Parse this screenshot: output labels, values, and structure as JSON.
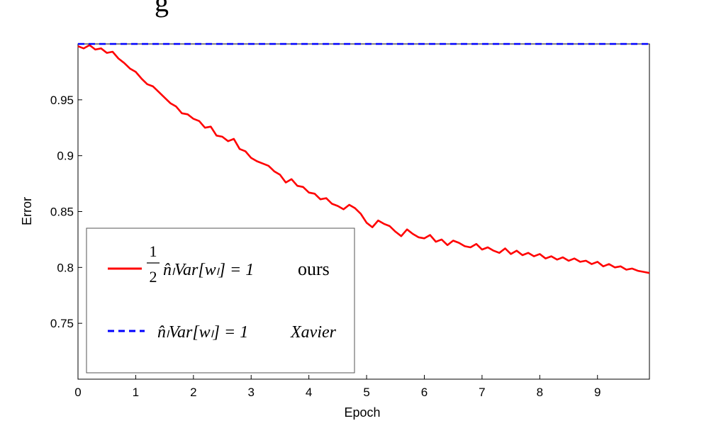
{
  "header": {
    "partial_text": "g"
  },
  "chart_data": {
    "type": "line",
    "title": "",
    "xlabel": "Epoch",
    "ylabel": "Error",
    "xlim": [
      0,
      9.9
    ],
    "ylim": [
      0.7,
      1.0
    ],
    "x_ticks": [
      "0",
      "1",
      "2",
      "3",
      "4",
      "5",
      "6",
      "7",
      "8",
      "9"
    ],
    "y_ticks": [
      "0.75",
      "0.8",
      "0.85",
      "0.9",
      "0.95"
    ],
    "grid": false,
    "legend_position": "bottom-left",
    "series": [
      {
        "name": "1/2 n̂_l Var[w_l] = 1 ours",
        "color": "#ff0000",
        "style": "solid",
        "legend": {
          "numerator": "1",
          "denominator": "2",
          "expr": "n̂ₗVar[wₗ] = 1",
          "tag": "ours"
        },
        "points": [
          [
            0.0,
            0.998
          ],
          [
            0.1,
            0.996
          ],
          [
            0.2,
            0.999
          ],
          [
            0.3,
            0.995
          ],
          [
            0.4,
            0.996
          ],
          [
            0.5,
            0.992
          ],
          [
            0.6,
            0.993
          ],
          [
            0.7,
            0.987
          ],
          [
            0.8,
            0.983
          ],
          [
            0.9,
            0.978
          ],
          [
            1.0,
            0.975
          ],
          [
            1.1,
            0.969
          ],
          [
            1.2,
            0.964
          ],
          [
            1.3,
            0.962
          ],
          [
            1.4,
            0.957
          ],
          [
            1.5,
            0.952
          ],
          [
            1.6,
            0.947
          ],
          [
            1.7,
            0.944
          ],
          [
            1.8,
            0.938
          ],
          [
            1.9,
            0.937
          ],
          [
            2.0,
            0.933
          ],
          [
            2.1,
            0.931
          ],
          [
            2.2,
            0.925
          ],
          [
            2.3,
            0.926
          ],
          [
            2.4,
            0.918
          ],
          [
            2.5,
            0.917
          ],
          [
            2.6,
            0.913
          ],
          [
            2.7,
            0.915
          ],
          [
            2.8,
            0.906
          ],
          [
            2.9,
            0.904
          ],
          [
            3.0,
            0.898
          ],
          [
            3.1,
            0.895
          ],
          [
            3.2,
            0.893
          ],
          [
            3.3,
            0.891
          ],
          [
            3.4,
            0.886
          ],
          [
            3.5,
            0.883
          ],
          [
            3.6,
            0.876
          ],
          [
            3.7,
            0.879
          ],
          [
            3.8,
            0.873
          ],
          [
            3.9,
            0.872
          ],
          [
            4.0,
            0.867
          ],
          [
            4.1,
            0.866
          ],
          [
            4.2,
            0.861
          ],
          [
            4.3,
            0.862
          ],
          [
            4.4,
            0.857
          ],
          [
            4.5,
            0.855
          ],
          [
            4.6,
            0.852
          ],
          [
            4.7,
            0.856
          ],
          [
            4.8,
            0.853
          ],
          [
            4.9,
            0.848
          ],
          [
            5.0,
            0.84
          ],
          [
            5.1,
            0.836
          ],
          [
            5.2,
            0.842
          ],
          [
            5.3,
            0.839
          ],
          [
            5.4,
            0.837
          ],
          [
            5.5,
            0.832
          ],
          [
            5.6,
            0.828
          ],
          [
            5.7,
            0.834
          ],
          [
            5.8,
            0.83
          ],
          [
            5.9,
            0.827
          ],
          [
            6.0,
            0.826
          ],
          [
            6.1,
            0.829
          ],
          [
            6.2,
            0.823
          ],
          [
            6.3,
            0.825
          ],
          [
            6.4,
            0.82
          ],
          [
            6.5,
            0.824
          ],
          [
            6.6,
            0.822
          ],
          [
            6.7,
            0.819
          ],
          [
            6.8,
            0.818
          ],
          [
            6.9,
            0.821
          ],
          [
            7.0,
            0.816
          ],
          [
            7.1,
            0.818
          ],
          [
            7.2,
            0.815
          ],
          [
            7.3,
            0.813
          ],
          [
            7.4,
            0.817
          ],
          [
            7.5,
            0.812
          ],
          [
            7.6,
            0.815
          ],
          [
            7.7,
            0.811
          ],
          [
            7.8,
            0.813
          ],
          [
            7.9,
            0.81
          ],
          [
            8.0,
            0.812
          ],
          [
            8.1,
            0.808
          ],
          [
            8.2,
            0.81
          ],
          [
            8.3,
            0.807
          ],
          [
            8.4,
            0.809
          ],
          [
            8.5,
            0.806
          ],
          [
            8.6,
            0.808
          ],
          [
            8.7,
            0.805
          ],
          [
            8.8,
            0.806
          ],
          [
            8.9,
            0.803
          ],
          [
            9.0,
            0.805
          ],
          [
            9.1,
            0.801
          ],
          [
            9.2,
            0.803
          ],
          [
            9.3,
            0.8
          ],
          [
            9.4,
            0.801
          ],
          [
            9.5,
            0.798
          ],
          [
            9.6,
            0.799
          ],
          [
            9.7,
            0.797
          ],
          [
            9.8,
            0.796
          ],
          [
            9.9,
            0.795
          ]
        ]
      },
      {
        "name": "n̂_l Var[w_l] = 1 Xavier",
        "color": "#0000ff",
        "style": "dashed",
        "legend": {
          "expr": "n̂ₗVar[wₗ] = 1",
          "tag": "Xavier"
        },
        "points": [
          [
            0.0,
            1.0
          ],
          [
            9.9,
            1.0
          ]
        ]
      }
    ]
  }
}
